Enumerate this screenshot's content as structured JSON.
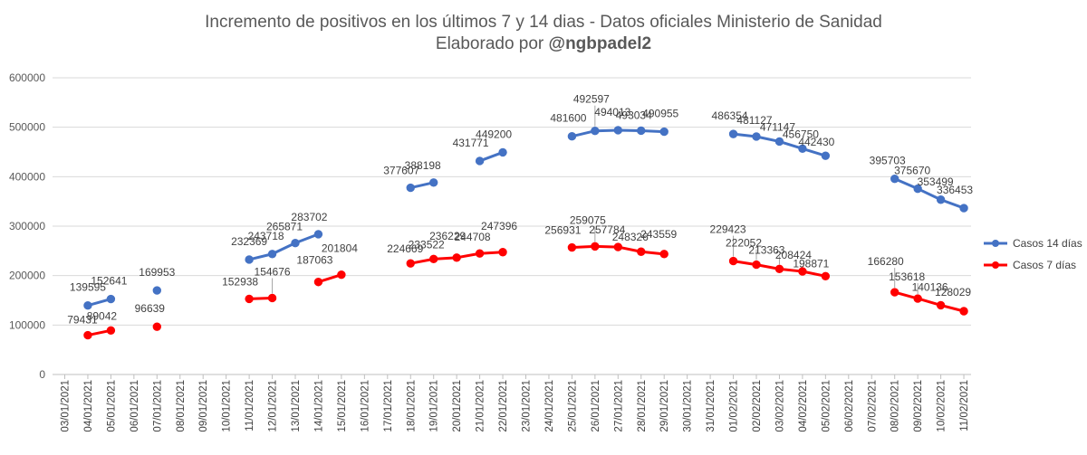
{
  "chart_data": {
    "type": "line",
    "title_line1": "Incremento de positivos en los últimos 7 y 14 dias - Datos oficiales Ministerio de Sanidad",
    "title_line2_prefix": "Elaborado por ",
    "title_line2_handle": "@ngbpadel2",
    "xlabel": "",
    "ylabel": "",
    "ylim": [
      0,
      600000
    ],
    "yticks": [
      "0",
      "100000",
      "200000",
      "300000",
      "400000",
      "500000",
      "600000"
    ],
    "grid": true,
    "legend_position": "right",
    "categories": [
      "03/01/2021",
      "04/01/2021",
      "05/01/2021",
      "06/01/2021",
      "07/01/2021",
      "08/01/2021",
      "09/01/2021",
      "10/01/2021",
      "11/01/2021",
      "12/01/2021",
      "13/01/2021",
      "14/01/2021",
      "15/01/2021",
      "16/01/2021",
      "17/01/2021",
      "18/01/2021",
      "19/01/2021",
      "20/01/2021",
      "21/01/2021",
      "22/01/2021",
      "23/01/2021",
      "24/01/2021",
      "25/01/2021",
      "26/01/2021",
      "27/01/2021",
      "28/01/2021",
      "29/01/2021",
      "30/01/2021",
      "31/01/2021",
      "01/02/2021",
      "02/02/2021",
      "03/02/2021",
      "04/02/2021",
      "05/02/2021",
      "06/02/2021",
      "07/02/2021",
      "08/02/2021",
      "09/02/2021",
      "10/02/2021",
      "11/02/2021"
    ],
    "series": [
      {
        "name": "Casos 14 días",
        "color": "#4472C4",
        "values": [
          null,
          139595,
          152641,
          null,
          169953,
          null,
          null,
          null,
          232369,
          243718,
          265871,
          283702,
          null,
          null,
          null,
          377607,
          388198,
          null,
          431771,
          449200,
          null,
          null,
          481600,
          492597,
          494013,
          493034,
          490955,
          null,
          null,
          486354,
          481127,
          471147,
          456750,
          442430,
          null,
          null,
          395703,
          375670,
          353499,
          336453
        ]
      },
      {
        "name": "Casos 7 días",
        "color": "#FF0000",
        "values": [
          null,
          79431,
          89042,
          null,
          96639,
          null,
          null,
          null,
          152938,
          154676,
          null,
          187063,
          201804,
          null,
          null,
          224669,
          233522,
          236229,
          244708,
          247396,
          null,
          null,
          256931,
          259075,
          257784,
          248326,
          243559,
          null,
          null,
          229423,
          222052,
          213363,
          208424,
          198871,
          null,
          null,
          166280,
          153618,
          140136,
          128029
        ]
      }
    ]
  }
}
